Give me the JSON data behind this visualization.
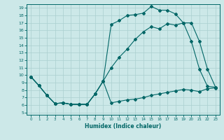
{
  "xlabel": "Humidex (Indice chaleur)",
  "bg_color": "#cce8e8",
  "line_color": "#006666",
  "grid_color": "#aacfcf",
  "xlim": [
    -0.5,
    23.5
  ],
  "ylim": [
    4.7,
    19.5
  ],
  "xticks": [
    0,
    1,
    2,
    3,
    4,
    5,
    6,
    7,
    8,
    9,
    10,
    11,
    12,
    13,
    14,
    15,
    16,
    17,
    18,
    19,
    20,
    21,
    22,
    23
  ],
  "yticks": [
    5,
    6,
    7,
    8,
    9,
    10,
    11,
    12,
    13,
    14,
    15,
    16,
    17,
    18,
    19
  ],
  "line1_x": [
    0,
    1,
    2,
    3,
    4,
    5,
    6,
    7,
    8,
    9,
    10,
    11,
    12,
    13,
    14,
    15,
    16,
    17,
    18,
    19,
    20,
    21,
    22,
    23
  ],
  "line1_y": [
    9.8,
    8.6,
    7.3,
    6.2,
    6.3,
    6.1,
    6.1,
    6.1,
    7.5,
    9.2,
    16.8,
    17.3,
    18.0,
    18.1,
    18.3,
    19.2,
    18.7,
    18.7,
    18.2,
    17.0,
    14.5,
    10.8,
    8.5,
    8.4
  ],
  "line2_x": [
    0,
    1,
    2,
    3,
    4,
    5,
    6,
    7,
    8,
    9,
    10,
    11,
    12,
    13,
    14,
    15,
    16,
    17,
    18,
    19,
    20,
    21,
    22,
    23
  ],
  "line2_y": [
    9.8,
    8.6,
    7.3,
    6.2,
    6.3,
    6.1,
    6.1,
    6.1,
    7.5,
    9.2,
    11.0,
    12.4,
    13.5,
    14.8,
    15.8,
    16.5,
    16.2,
    16.9,
    16.7,
    17.0,
    17.0,
    14.5,
    10.8,
    8.4
  ],
  "line3_x": [
    0,
    1,
    2,
    3,
    4,
    5,
    6,
    7,
    8,
    9,
    10,
    11,
    12,
    13,
    14,
    15,
    16,
    17,
    18,
    19,
    20,
    21,
    22,
    23
  ],
  "line3_y": [
    9.8,
    8.6,
    7.3,
    6.2,
    6.3,
    6.1,
    6.1,
    6.1,
    7.5,
    9.2,
    6.3,
    6.5,
    6.7,
    6.8,
    7.0,
    7.3,
    7.5,
    7.7,
    7.9,
    8.1,
    8.0,
    7.8,
    8.2,
    8.3
  ]
}
